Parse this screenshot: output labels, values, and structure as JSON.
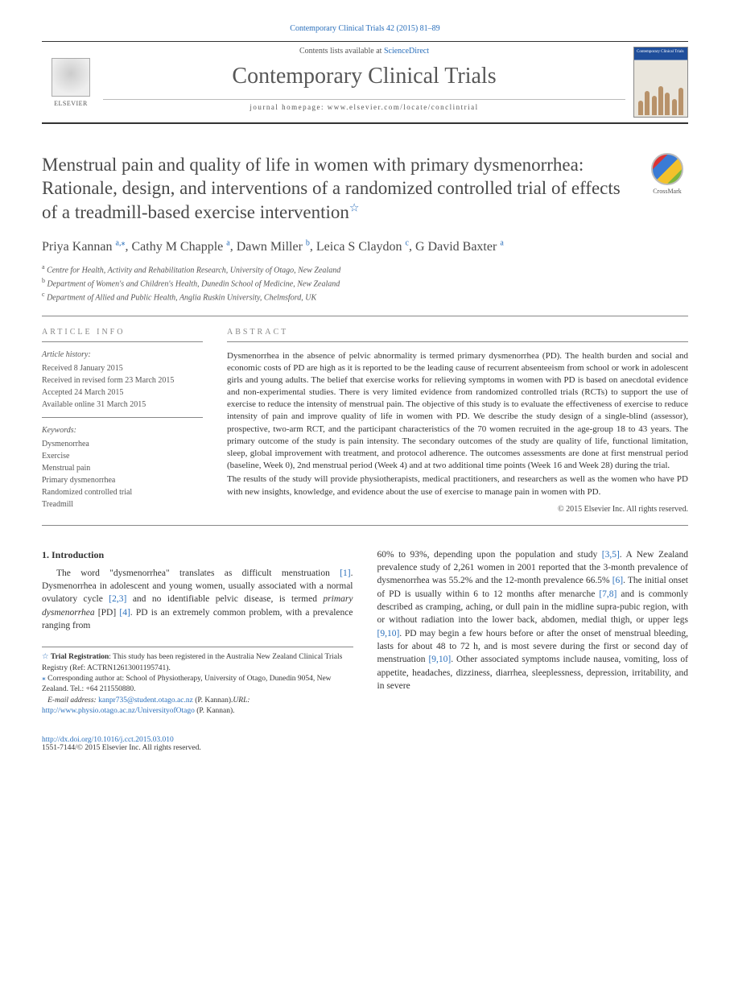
{
  "running_head": "Contemporary Clinical Trials 42 (2015) 81–89",
  "masthead": {
    "publisher_name": "ELSEVIER",
    "contents_prefix": "Contents lists available at ",
    "contents_link": "ScienceDirect",
    "journal_title": "Contemporary Clinical Trials",
    "homepage_label": "journal homepage: www.elsevier.com/locate/conclintrial",
    "cover_title": "Contemporary Clinical Trials"
  },
  "crossmark_label": "CrossMark",
  "article": {
    "title": "Menstrual pain and quality of life in women with primary dysmenorrhea: Rationale, design, and interventions of a randomized controlled trial of effects of a treadmill-based exercise intervention",
    "star": "☆",
    "authors_html": "Priya Kannan|a,*|, Cathy M Chapple|a|, Dawn Miller|b|, Leica S Claydon|c|, G David Baxter|a|",
    "authors": [
      {
        "name": "Priya Kannan",
        "sup": "a,⁎"
      },
      {
        "name": "Cathy M Chapple",
        "sup": "a"
      },
      {
        "name": "Dawn Miller",
        "sup": "b"
      },
      {
        "name": "Leica S Claydon",
        "sup": "c"
      },
      {
        "name": "G David Baxter",
        "sup": "a"
      }
    ],
    "affiliations": [
      {
        "mark": "a",
        "text": "Centre for Health, Activity and Rehabilitation Research, University of Otago, New Zealand"
      },
      {
        "mark": "b",
        "text": "Department of Women's and Children's Health, Dunedin School of Medicine, New Zealand"
      },
      {
        "mark": "c",
        "text": "Department of Allied and Public Health, Anglia Ruskin University, Chelmsford, UK"
      }
    ]
  },
  "info": {
    "heading": "article info",
    "history_label": "Article history:",
    "history": [
      "Received 8 January 2015",
      "Received in revised form 23 March 2015",
      "Accepted 24 March 2015",
      "Available online 31 March 2015"
    ],
    "keywords_label": "Keywords:",
    "keywords": [
      "Dysmenorrhea",
      "Exercise",
      "Menstrual pain",
      "Primary dysmenorrhea",
      "Randomized controlled trial",
      "Treadmill"
    ]
  },
  "abstract": {
    "heading": "abstract",
    "p1": "Dysmenorrhea in the absence of pelvic abnormality is termed primary dysmenorrhea (PD). The health burden and social and economic costs of PD are high as it is reported to be the leading cause of recurrent absenteeism from school or work in adolescent girls and young adults. The belief that exercise works for relieving symptoms in women with PD is based on anecdotal evidence and non-experimental studies. There is very limited evidence from randomized controlled trials (RCTs) to support the use of exercise to reduce the intensity of menstrual pain. The objective of this study is to evaluate the effectiveness of exercise to reduce intensity of pain and improve quality of life in women with PD. We describe the study design of a single-blind (assessor), prospective, two-arm RCT, and the participant characteristics of the 70 women recruited in the age-group 18 to 43 years. The primary outcome of the study is pain intensity. The secondary outcomes of the study are quality of life, functional limitation, sleep, global improvement with treatment, and protocol adherence. The outcomes assessments are done at first menstrual period (baseline, Week 0), 2nd menstrual period (Week 4) and at two additional time points (Week 16 and Week 28) during the trial.",
    "p2": "The results of the study will provide physiotherapists, medical practitioners, and researchers as well as the women who have PD with new insights, knowledge, and evidence about the use of exercise to manage pain in women with PD.",
    "copyright": "© 2015 Elsevier Inc. All rights reserved."
  },
  "section1": {
    "heading": "1. Introduction",
    "left_text_pre": "The word \"dysmenorrhea\" translates as difficult menstruation ",
    "ref1": "[1]",
    "left_text_mid1": ". Dysmenorrhea in adolescent and young women, usually associated with a normal ovulatory cycle ",
    "ref23": "[2,3]",
    "left_text_mid2": " and no identifiable pelvic disease, is termed ",
    "pd_term": "primary dysmenorrhea",
    "pd_abbrev": " [PD] ",
    "ref4": "[4]",
    "left_text_end": ". PD is an extremely common problem, with a prevalence ranging from",
    "right_text_pre": "60% to 93%, depending upon the population and study ",
    "ref35": "[3,5]",
    "right_text_1": ". A New Zealand prevalence study of 2,261 women in 2001 reported that the 3-month prevalence of dysmenorrhea was 55.2% and the 12-month prevalence 66.5% ",
    "ref6": "[6]",
    "right_text_2": ". The initial onset of PD is usually within 6 to 12 months after menarche ",
    "ref78": "[7,8]",
    "right_text_3": " and is commonly described as cramping, aching, or dull pain in the midline supra-pubic region, with or without radiation into the lower back, abdomen, medial thigh, or upper legs ",
    "ref910a": "[9,10]",
    "right_text_4": ". PD may begin a few hours before or after the onset of menstrual bleeding, lasts for about 48 to 72 h, and is most severe during the first or second day of menstruation ",
    "ref910b": "[9,10]",
    "right_text_5": ". Other associated symptoms include nausea, vomiting, loss of appetite, headaches, dizziness, diarrhea, sleeplessness, depression, irritability, and in severe"
  },
  "footnotes": {
    "trial_star": "☆",
    "trial_label": "Trial Registration",
    "trial_text": ": This study has been registered in the Australia New Zealand Clinical Trials Registry (Ref: ACTRN12613001195741).",
    "corr_star": "⁎",
    "corr_text": " Corresponding author at: School of Physiotherapy, University of Otago, Dunedin 9054, New Zealand. Tel.: +64 211550880.",
    "email_label": "E-mail address:",
    "email": "kanpr735@student.otago.ac.nz",
    "email_who": " (P. Kannan).",
    "url_label": "URL:",
    "url": "http://www.physio.otago.ac.nz/UniversityofOtago",
    "url_who": " (P. Kannan)."
  },
  "footer": {
    "doi": "http://dx.doi.org/10.1016/j.cct.2015.03.010",
    "issn_line": "1551-7144/© 2015 Elsevier Inc. All rights reserved."
  },
  "colors": {
    "link": "#2a6fbb",
    "text": "#333333",
    "muted": "#555555",
    "rule": "#888888",
    "cover_blue": "#1f4e9b"
  },
  "typography": {
    "running_head_pt": 10,
    "journal_title_pt": 28,
    "article_title_pt": 23,
    "authors_pt": 16,
    "affil_pt": 10,
    "body_pt": 11.5,
    "abstract_pt": 11,
    "footnote_pt": 9.5
  },
  "cover_figures_heights": [
    18,
    30,
    24,
    36,
    28,
    20,
    34
  ]
}
